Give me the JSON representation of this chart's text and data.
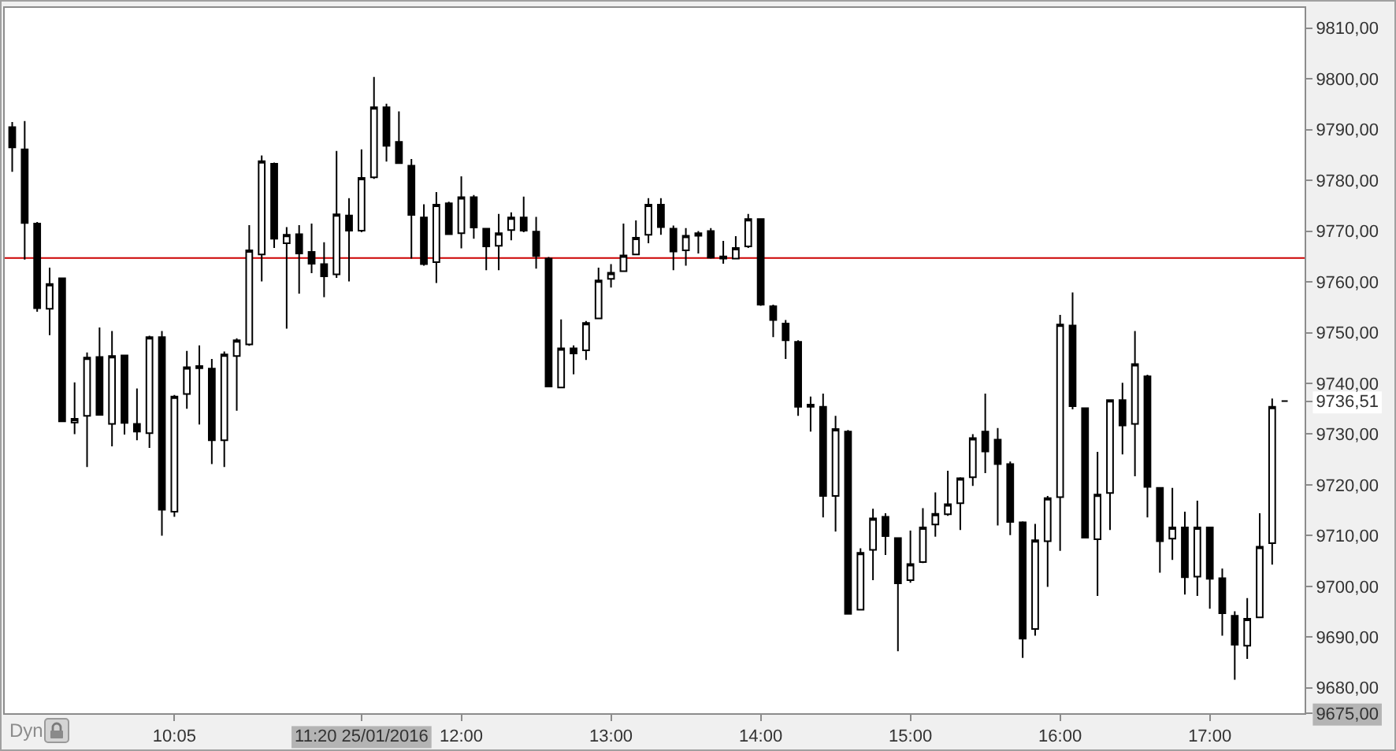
{
  "chart_data": {
    "type": "candlestick",
    "x": [
      "2016-01-25T09:00",
      "2016-01-25T09:05",
      "2016-01-25T09:10",
      "2016-01-25T09:15",
      "2016-01-25T09:20",
      "2016-01-25T09:25",
      "2016-01-25T09:30",
      "2016-01-25T09:35",
      "2016-01-25T09:40",
      "2016-01-25T09:45",
      "2016-01-25T09:50",
      "2016-01-25T09:55",
      "2016-01-25T10:00",
      "2016-01-25T10:05",
      "2016-01-25T10:10",
      "2016-01-25T10:15",
      "2016-01-25T10:20",
      "2016-01-25T10:25",
      "2016-01-25T10:30",
      "2016-01-25T10:35",
      "2016-01-25T10:40",
      "2016-01-25T10:45",
      "2016-01-25T10:50",
      "2016-01-25T10:55",
      "2016-01-25T11:00",
      "2016-01-25T11:05",
      "2016-01-25T11:10",
      "2016-01-25T11:15",
      "2016-01-25T11:20",
      "2016-01-25T11:25",
      "2016-01-25T11:30",
      "2016-01-25T11:35",
      "2016-01-25T11:40",
      "2016-01-25T11:45",
      "2016-01-25T11:50",
      "2016-01-25T11:55",
      "2016-01-25T12:00",
      "2016-01-25T12:05",
      "2016-01-25T12:10",
      "2016-01-25T12:15",
      "2016-01-25T12:20",
      "2016-01-25T12:25",
      "2016-01-25T12:30",
      "2016-01-25T12:35",
      "2016-01-25T12:40",
      "2016-01-25T12:45",
      "2016-01-25T12:50",
      "2016-01-25T12:55",
      "2016-01-25T13:00",
      "2016-01-25T13:05",
      "2016-01-25T13:10",
      "2016-01-25T13:15",
      "2016-01-25T13:20",
      "2016-01-25T13:25",
      "2016-01-25T13:30",
      "2016-01-25T13:35",
      "2016-01-25T13:40",
      "2016-01-25T13:45",
      "2016-01-25T13:50",
      "2016-01-25T13:55",
      "2016-01-25T14:00",
      "2016-01-25T14:05",
      "2016-01-25T14:10",
      "2016-01-25T14:15",
      "2016-01-25T14:20",
      "2016-01-25T14:25",
      "2016-01-25T14:30",
      "2016-01-25T14:35",
      "2016-01-25T14:40",
      "2016-01-25T14:45",
      "2016-01-25T14:50",
      "2016-01-25T14:55",
      "2016-01-25T15:00",
      "2016-01-25T15:05",
      "2016-01-25T15:10",
      "2016-01-25T15:15",
      "2016-01-25T15:20",
      "2016-01-25T15:25",
      "2016-01-25T15:30",
      "2016-01-25T15:35",
      "2016-01-25T15:40",
      "2016-01-25T15:45",
      "2016-01-25T15:50",
      "2016-01-25T15:55",
      "2016-01-25T16:00",
      "2016-01-25T16:05",
      "2016-01-25T16:10",
      "2016-01-25T16:15",
      "2016-01-25T16:20",
      "2016-01-25T16:25",
      "2016-01-25T16:30",
      "2016-01-25T16:35",
      "2016-01-25T16:40",
      "2016-01-25T16:45",
      "2016-01-25T16:50",
      "2016-01-25T16:55",
      "2016-01-25T17:00",
      "2016-01-25T17:05",
      "2016-01-25T17:10",
      "2016-01-25T17:15",
      "2016-01-25T17:20",
      "2016-01-25T17:25",
      "2016-01-25T17:30"
    ],
    "ohlc": [
      [
        9790.5,
        9791.5,
        9781.7,
        9786.5
      ],
      [
        9786.1,
        9791.7,
        9764.4,
        9771.6
      ],
      [
        9771.5,
        9771.8,
        9754.1,
        9754.8
      ],
      [
        9754.7,
        9762.8,
        9749.5,
        9759.6
      ],
      [
        9760.7,
        9760.7,
        9732.5,
        9732.5
      ],
      [
        9732.3,
        9740.2,
        9730.0,
        9733.0
      ],
      [
        9733.6,
        9746.1,
        9723.5,
        9745.1
      ],
      [
        9745.2,
        9751.0,
        9733.8,
        9733.8
      ],
      [
        9732.0,
        9750.3,
        9727.6,
        9745.4
      ],
      [
        9745.5,
        9745.5,
        9729.9,
        9732.2
      ],
      [
        9732.0,
        9739.0,
        9728.8,
        9730.5
      ],
      [
        9730.2,
        9749.4,
        9727.3,
        9749.1
      ],
      [
        9749.1,
        9750.3,
        9710.0,
        9715.1
      ],
      [
        9714.7,
        9737.7,
        9713.7,
        9737.4
      ],
      [
        9737.9,
        9746.4,
        9735.0,
        9743.2
      ],
      [
        9743.4,
        9747.5,
        9731.9,
        9743.0
      ],
      [
        9742.9,
        9744.8,
        9724.1,
        9728.8
      ],
      [
        9728.8,
        9746.3,
        9723.5,
        9745.7
      ],
      [
        9745.4,
        9748.9,
        9734.6,
        9748.5
      ],
      [
        9747.7,
        9771.2,
        9747.4,
        9766.2
      ],
      [
        9765.4,
        9784.9,
        9760.1,
        9783.8
      ],
      [
        9783.3,
        9783.5,
        9766.7,
        9768.5
      ],
      [
        9767.6,
        9770.8,
        9750.8,
        9769.3
      ],
      [
        9769.4,
        9771.2,
        9757.7,
        9765.6
      ],
      [
        9765.9,
        9771.5,
        9761.7,
        9763.6
      ],
      [
        9763.5,
        9767.8,
        9757.0,
        9761.1
      ],
      [
        9761.5,
        9785.8,
        9760.8,
        9773.3
      ],
      [
        9773.1,
        9776.5,
        9760.1,
        9770.1
      ],
      [
        9770.1,
        9786.1,
        9769.8,
        9780.5
      ],
      [
        9780.6,
        9800.4,
        9780.3,
        9794.4
      ],
      [
        9794.4,
        9795.1,
        9783.7,
        9786.8
      ],
      [
        9787.6,
        9793.6,
        9783.4,
        9783.4
      ],
      [
        9782.9,
        9784.2,
        9764.6,
        9773.2
      ],
      [
        9772.7,
        9775.3,
        9763.2,
        9763.5
      ],
      [
        9763.9,
        9777.7,
        9759.8,
        9775.2
      ],
      [
        9775.5,
        9775.8,
        9769.4,
        9769.4
      ],
      [
        9769.6,
        9780.8,
        9766.6,
        9776.7
      ],
      [
        9776.7,
        9777.1,
        9768.5,
        9770.7
      ],
      [
        9770.5,
        9770.5,
        9762.3,
        9767.0
      ],
      [
        9767.1,
        9773.4,
        9762.3,
        9769.6
      ],
      [
        9770.2,
        9773.7,
        9768.2,
        9772.7
      ],
      [
        9772.7,
        9776.8,
        9769.8,
        9770.1
      ],
      [
        9769.9,
        9772.8,
        9762.6,
        9765.1
      ],
      [
        9764.6,
        9764.9,
        9739.3,
        9739.4
      ],
      [
        9739.2,
        9752.6,
        9739.2,
        9746.9
      ],
      [
        9746.9,
        9747.5,
        9741.8,
        9745.9
      ],
      [
        9746.5,
        9752.3,
        9744.6,
        9751.9
      ],
      [
        9752.8,
        9762.8,
        9752.8,
        9760.3
      ],
      [
        9760.6,
        9763.5,
        9758.9,
        9761.8
      ],
      [
        9762.1,
        9771.5,
        9762.1,
        9765.2
      ],
      [
        9765.4,
        9772.1,
        9765.4,
        9768.7
      ],
      [
        9769.3,
        9776.5,
        9767.6,
        9775.2
      ],
      [
        9775.2,
        9776.5,
        9769.3,
        9770.8
      ],
      [
        9770.5,
        9771.1,
        9762.3,
        9766.0
      ],
      [
        9766.2,
        9770.6,
        9763.2,
        9769.1
      ],
      [
        9769.6,
        9770.0,
        9765.6,
        9769.1
      ],
      [
        9770.0,
        9770.6,
        9764.6,
        9764.8
      ],
      [
        9765.0,
        9768.1,
        9763.6,
        9764.6
      ],
      [
        9764.6,
        9769.0,
        9764.6,
        9766.7
      ],
      [
        9767.0,
        9773.4,
        9766.7,
        9772.4
      ],
      [
        9772.4,
        9772.4,
        9755.3,
        9755.5
      ],
      [
        9755.2,
        9755.5,
        9749.1,
        9752.5
      ],
      [
        9751.8,
        9752.5,
        9744.8,
        9748.5
      ],
      [
        9748.2,
        9748.5,
        9733.6,
        9735.4
      ],
      [
        9735.8,
        9737.4,
        9730.5,
        9735.4
      ],
      [
        9735.4,
        9738.0,
        9713.6,
        9717.8
      ],
      [
        9717.8,
        9733.6,
        9710.8,
        9731.0
      ],
      [
        9730.5,
        9730.8,
        9694.5,
        9694.6
      ],
      [
        9695.4,
        9707.5,
        9695.4,
        9706.6
      ],
      [
        9707.2,
        9715.3,
        9701.2,
        9713.4
      ],
      [
        9713.7,
        9714.4,
        9706.2,
        9709.9
      ],
      [
        9709.5,
        9709.5,
        9687.2,
        9700.6
      ],
      [
        9701.2,
        9711.0,
        9700.7,
        9704.4
      ],
      [
        9704.8,
        9715.4,
        9704.6,
        9711.6
      ],
      [
        9712.2,
        9718.5,
        9709.8,
        9714.3
      ],
      [
        9714.2,
        9722.8,
        9713.9,
        9716.2
      ],
      [
        9716.4,
        9721.5,
        9711.1,
        9721.3
      ],
      [
        9721.5,
        9730.0,
        9719.8,
        9729.2
      ],
      [
        9730.5,
        9738.0,
        9722.3,
        9726.6
      ],
      [
        9728.9,
        9731.2,
        9712.0,
        9724.1
      ],
      [
        9724.1,
        9724.6,
        9710.1,
        9712.7
      ],
      [
        9712.6,
        9712.8,
        9685.9,
        9689.7
      ],
      [
        9691.6,
        9712.3,
        9690.3,
        9709.1
      ],
      [
        9708.9,
        9717.8,
        9699.9,
        9717.4
      ],
      [
        9717.6,
        9753.5,
        9707.0,
        9751.6
      ],
      [
        9751.4,
        9757.9,
        9734.9,
        9735.5
      ],
      [
        9735.1,
        9735.1,
        9709.6,
        9709.6
      ],
      [
        9709.3,
        9726.5,
        9698.1,
        9718.1
      ],
      [
        9718.4,
        9736.7,
        9711.1,
        9736.7
      ],
      [
        9736.7,
        9740.1,
        9726.0,
        9731.7
      ],
      [
        9732.0,
        9750.3,
        9721.7,
        9743.8
      ],
      [
        9741.4,
        9741.7,
        9713.6,
        9719.6
      ],
      [
        9719.4,
        9719.4,
        9702.7,
        9708.9
      ],
      [
        9709.4,
        9719.4,
        9705.2,
        9711.6
      ],
      [
        9711.6,
        9714.7,
        9698.4,
        9701.8
      ],
      [
        9701.9,
        9716.9,
        9698.1,
        9711.6
      ],
      [
        9711.6,
        9711.6,
        9695.6,
        9701.5
      ],
      [
        9701.6,
        9703.5,
        9690.3,
        9694.7
      ],
      [
        9694.2,
        9695.1,
        9681.6,
        9688.5
      ],
      [
        9688.3,
        9697.7,
        9685.7,
        9693.6
      ],
      [
        9693.9,
        9714.4,
        9693.9,
        9707.8
      ],
      [
        9708.5,
        9737.0,
        9704.3,
        9735.4
      ],
      [
        9736.51,
        9736.51,
        9736.51,
        9736.51
      ]
    ],
    "xlim": [
      "2016-01-25T08:57",
      "2016-01-25T17:38"
    ],
    "xticks": [
      {
        "value": "2016-01-25T10:05",
        "label": "10:05"
      },
      {
        "value": "2016-01-25T11:20",
        "label": "11:20 25/01/2016"
      },
      {
        "value": "2016-01-25T12:00",
        "label": "12:00"
      },
      {
        "value": "2016-01-25T13:00",
        "label": "13:00"
      },
      {
        "value": "2016-01-25T14:00",
        "label": "14:00"
      },
      {
        "value": "2016-01-25T15:00",
        "label": "15:00"
      },
      {
        "value": "2016-01-25T16:00",
        "label": "16:00"
      },
      {
        "value": "2016-01-25T17:00",
        "label": "17:00"
      }
    ],
    "ylim": [
      9675,
      9814
    ],
    "yticks": [
      {
        "value": 9675,
        "label": "9675,00"
      },
      {
        "value": 9680,
        "label": "9680,00"
      },
      {
        "value": 9690,
        "label": "9690,00"
      },
      {
        "value": 9700,
        "label": "9700,00"
      },
      {
        "value": 9710,
        "label": "9710,00"
      },
      {
        "value": 9720,
        "label": "9720,00"
      },
      {
        "value": 9730,
        "label": "9730,00"
      },
      {
        "value": 9736.51,
        "label": "9736,51"
      },
      {
        "value": 9740,
        "label": "9740,00"
      },
      {
        "value": 9750,
        "label": "9750,00"
      },
      {
        "value": 9760,
        "label": "9760,00"
      },
      {
        "value": 9770,
        "label": "9770,00"
      },
      {
        "value": 9780,
        "label": "9780,00"
      },
      {
        "value": 9790,
        "label": "9790,00"
      },
      {
        "value": 9800,
        "label": "9800,00"
      },
      {
        "value": 9810,
        "label": "9810,00"
      }
    ],
    "ref_lines": [
      {
        "axis": "y",
        "value": 9764.7,
        "color": "#cc0000"
      }
    ],
    "annotations": [
      "Dyn"
    ]
  }
}
